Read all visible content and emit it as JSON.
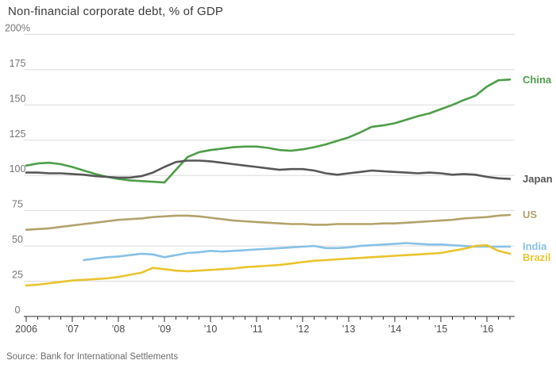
{
  "source": "Source: Bank for International Settlements",
  "chart_data": {
    "type": "line",
    "title": "Non-financial corporate debt, % of GDP",
    "xlabel": "",
    "ylabel": "% of GDP",
    "ylim": [
      0,
      200
    ],
    "xlim": [
      2006,
      2016.5
    ],
    "grid": true,
    "legend_position": "right-end-of-line",
    "y_tick_values": [
      0,
      25,
      50,
      75,
      100,
      125,
      150,
      175,
      200
    ],
    "y_tick_labels": [
      "0",
      "25",
      "50",
      "75",
      "100",
      "125",
      "150",
      "175",
      "200%"
    ],
    "x_tick_years": [
      2006,
      2007,
      2008,
      2009,
      2010,
      2011,
      2012,
      2013,
      2014,
      2015,
      2016
    ],
    "x_tick_labels": [
      "2006",
      "’07",
      "’08",
      "’09",
      "’10",
      "’11",
      "’12",
      "’13",
      "’14",
      "’15",
      "’16"
    ],
    "minor_tick_step_years": 0.25,
    "series": [
      {
        "name": "China",
        "color": "#4c9e47",
        "start_year": 2006.0,
        "step_years": 0.25,
        "values": [
          107,
          108.5,
          109,
          108,
          106,
          103.5,
          101,
          99,
          97.5,
          96.5,
          96,
          95.5,
          95,
          104,
          113,
          116.5,
          118,
          119,
          120,
          120.5,
          120.5,
          119.5,
          118,
          117.5,
          118.5,
          120,
          122,
          124.5,
          127,
          130.5,
          134.5,
          135.5,
          137,
          139.5,
          142,
          144,
          147,
          150,
          153.5,
          156.5,
          163,
          167.5,
          168
        ]
      },
      {
        "name": "Japan",
        "color": "#575757",
        "start_year": 2006.0,
        "step_years": 0.25,
        "values": [
          102,
          102,
          101.5,
          101.5,
          101,
          100.5,
          99.5,
          99,
          98.5,
          98.5,
          99.5,
          102,
          106,
          109.5,
          110.5,
          110.5,
          110,
          109,
          108,
          107,
          106,
          105,
          104,
          104.5,
          104.5,
          103.5,
          101.5,
          100.5,
          101.5,
          102.5,
          103.5,
          103,
          102.5,
          102,
          101.5,
          102,
          101.5,
          100.5,
          101,
          100.5,
          99,
          98,
          97.5
        ]
      },
      {
        "name": "US",
        "color": "#b2a26b",
        "start_year": 2006.0,
        "step_years": 0.25,
        "values": [
          61.5,
          62,
          62.5,
          63.5,
          64.5,
          65.5,
          66.5,
          67.5,
          68.5,
          69,
          69.5,
          70.5,
          71,
          71.5,
          71.5,
          71,
          70,
          69,
          68,
          67.5,
          67,
          66.5,
          66,
          65.5,
          65.5,
          65,
          65,
          65.5,
          65.5,
          65.5,
          65.5,
          66,
          66,
          66.5,
          67,
          67.5,
          68,
          68.5,
          69.5,
          70,
          70.5,
          71.5,
          72
        ]
      },
      {
        "name": "India",
        "color": "#87c1e6",
        "start_year": 2007.25,
        "step_years": 0.25,
        "values": [
          40,
          41,
          42,
          42.5,
          43.5,
          44.5,
          44,
          42,
          43.5,
          45,
          45.5,
          46.5,
          46,
          46.5,
          47,
          47.5,
          48,
          48.5,
          49,
          49.5,
          50,
          48.5,
          48.5,
          49,
          50,
          50.5,
          51,
          51.5,
          52,
          51.5,
          51,
          51,
          50.5,
          50,
          49.5,
          49.5,
          49.5,
          49.5
        ]
      },
      {
        "name": "Brazil",
        "color": "#e9c42e",
        "start_year": 2006.0,
        "step_years": 0.25,
        "values": [
          22,
          22.5,
          23.5,
          24.5,
          25.5,
          26,
          26.5,
          27,
          28,
          29.5,
          31,
          34.5,
          33.5,
          32.5,
          32,
          32.5,
          33,
          33.5,
          34,
          35,
          35.5,
          36,
          36.5,
          37.5,
          38.5,
          39.5,
          40,
          40.5,
          41,
          41.5,
          42,
          42.5,
          43,
          43.5,
          44,
          44.5,
          45,
          46.5,
          48,
          50,
          50.5,
          46.5,
          44.5
        ]
      }
    ]
  }
}
